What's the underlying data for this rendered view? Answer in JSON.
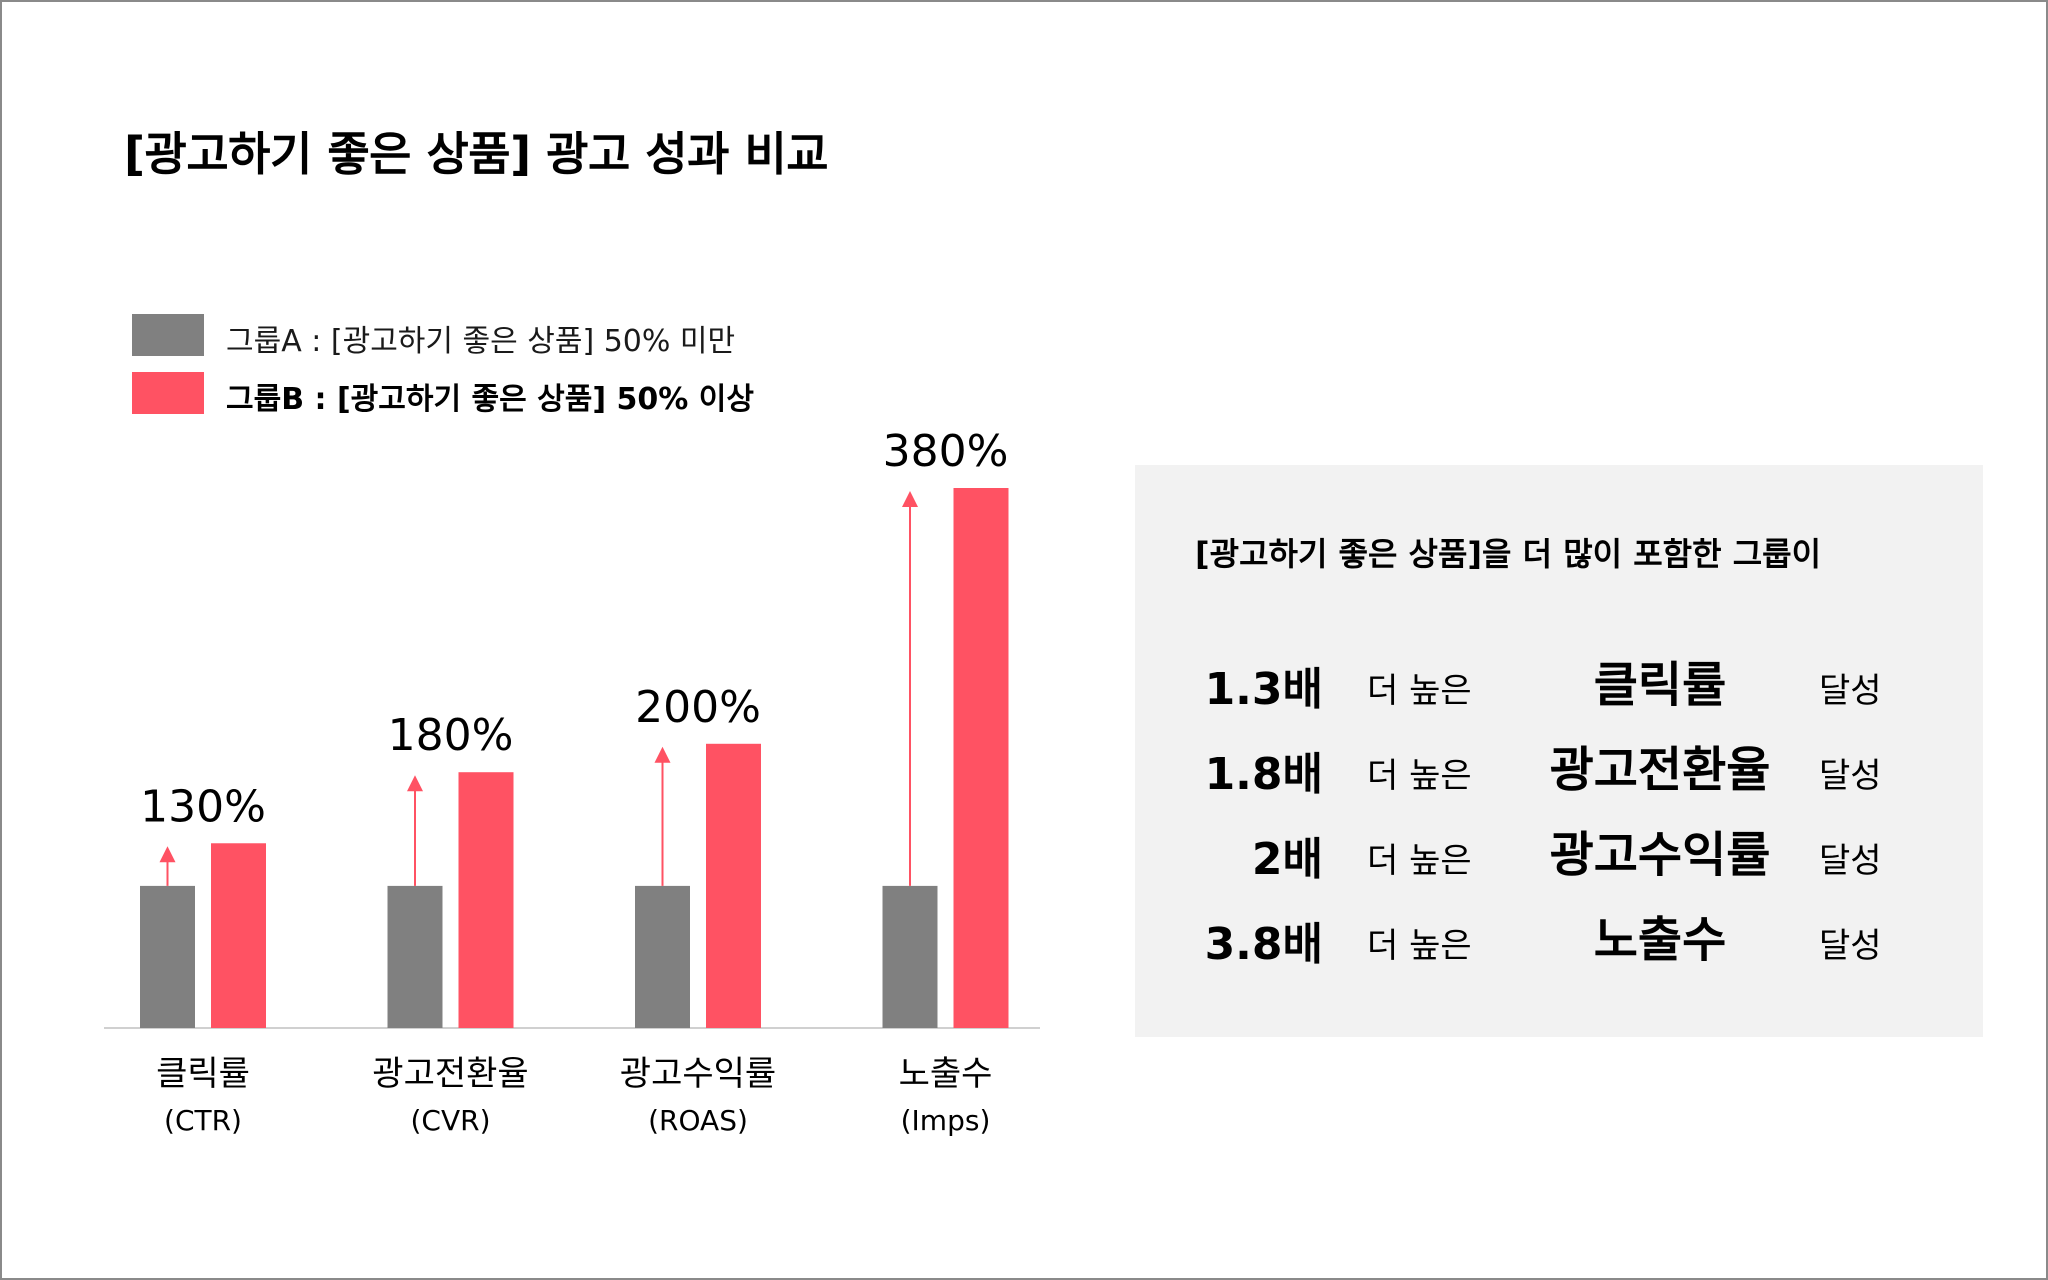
{
  "title": "[광고하기 좋은 상품] 광고 성과 비교",
  "legend": [
    {
      "label": "그룹A : [광고하기 좋은 상품] 50% 미만",
      "color": "#808080",
      "bold": false
    },
    {
      "label": "그룹B : [광고하기 좋은 상품] 50% 이상",
      "color": "#ff5263",
      "bold": true
    }
  ],
  "chart_data": {
    "type": "bar",
    "categories": [
      "클릭률",
      "광고전환율",
      "광고수익률",
      "노출수"
    ],
    "category_sublabels": [
      "(CTR)",
      "(CVR)",
      "(ROAS)",
      "(Imps)"
    ],
    "series": [
      {
        "name": "그룹A : [광고하기 좋은 상품] 50% 미만",
        "values": [
          100,
          100,
          100,
          100
        ],
        "color": "#808080"
      },
      {
        "name": "그룹B : [광고하기 좋은 상품] 50% 이상",
        "values": [
          130,
          180,
          200,
          380
        ],
        "color": "#ff5263"
      }
    ],
    "data_labels": [
      "130%",
      "180%",
      "200%",
      "380%"
    ],
    "ylim": [
      0,
      380
    ],
    "grid": false,
    "legend_position": "top-left"
  },
  "summary": {
    "heading": "[광고하기 좋은 상품]을 더 많이 포함한 그룹이",
    "higher_text": "더 높은",
    "achieved_text": "달성",
    "rows": [
      {
        "multiplier": "1.3배",
        "metric": "클릭률"
      },
      {
        "multiplier": "1.8배",
        "metric": "광고전환율"
      },
      {
        "multiplier": "2배",
        "metric": "광고수익률"
      },
      {
        "multiplier": "3.8배",
        "metric": "노출수"
      }
    ]
  }
}
